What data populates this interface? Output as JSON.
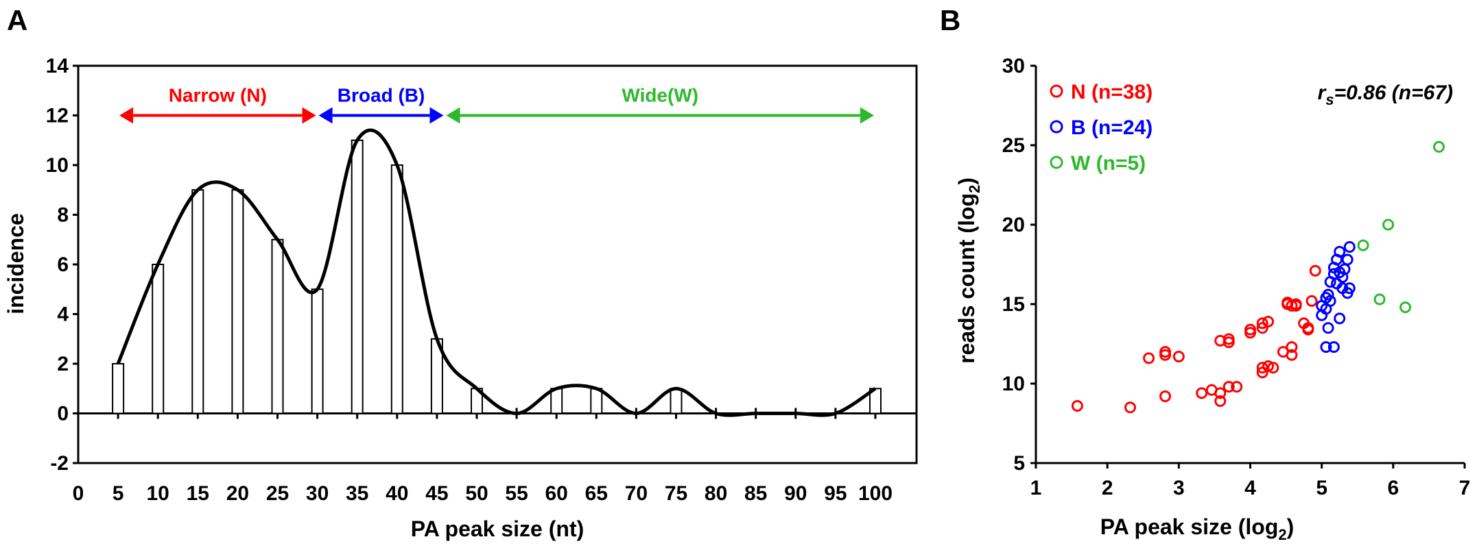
{
  "chart_data": [
    {
      "panel": "A",
      "type": "bar",
      "title": "",
      "xlabel": "PA peak size (nt)",
      "ylabel": "incidence",
      "ylim": [
        -2,
        14
      ],
      "xlim": [
        0,
        100
      ],
      "x_ticks": [
        "0",
        "5",
        "10",
        "15",
        "20",
        "25",
        "30",
        "35",
        "40",
        "45",
        "50",
        "55",
        "60",
        "65",
        "70",
        "75",
        "80",
        "85",
        "90",
        "95",
        "100"
      ],
      "y_ticks": [
        "-2",
        "0",
        "2",
        "4",
        "6",
        "8",
        "10",
        "12",
        "14"
      ],
      "categories": [
        5,
        10,
        15,
        20,
        25,
        30,
        35,
        40,
        45,
        50,
        55,
        60,
        65,
        70,
        75,
        80,
        85,
        90,
        95,
        100
      ],
      "values": [
        2,
        6,
        9,
        9,
        7,
        5,
        11,
        10,
        3,
        1,
        0,
        1,
        1,
        0,
        1,
        0,
        0,
        0,
        0,
        1
      ],
      "smooth_curve": true,
      "ranges": [
        {
          "label": "Narrow (N)",
          "from": 5,
          "to": 30,
          "color": "#ff0000"
        },
        {
          "label": "Broad (B)",
          "from": 30,
          "to": 46,
          "color": "#0000ff"
        },
        {
          "label": "Wide(W)",
          "from": 46,
          "to": 100,
          "color": "#2db92d"
        }
      ]
    },
    {
      "panel": "B",
      "type": "scatter",
      "title": "",
      "xlabel": "PA peak size (log",
      "xlabel_sub": "2",
      "xlabel_end": ")",
      "ylabel": "reads count (log",
      "ylabel_sub": "2",
      "ylabel_end": ")",
      "xlim": [
        1,
        7
      ],
      "ylim": [
        5,
        30
      ],
      "x_ticks": [
        "1",
        "2",
        "3",
        "4",
        "5",
        "6",
        "7"
      ],
      "y_ticks": [
        "5",
        "10",
        "15",
        "20",
        "25",
        "30"
      ],
      "legend_position": "top-left",
      "annotation": {
        "r": "r",
        "sub": "s",
        "text": "=0.86 (n=67)"
      },
      "series": [
        {
          "name": "N (n=38)",
          "color": "#ff0000",
          "points": [
            [
              1.58,
              8.6
            ],
            [
              2.32,
              8.5
            ],
            [
              2.58,
              11.6
            ],
            [
              2.81,
              11.8
            ],
            [
              2.81,
              12.0
            ],
            [
              2.81,
              9.2
            ],
            [
              3.0,
              11.7
            ],
            [
              3.32,
              9.4
            ],
            [
              3.46,
              9.6
            ],
            [
              3.58,
              9.4
            ],
            [
              3.58,
              8.9
            ],
            [
              3.58,
              12.7
            ],
            [
              3.7,
              12.6
            ],
            [
              3.7,
              12.8
            ],
            [
              3.7,
              9.8
            ],
            [
              3.81,
              9.8
            ],
            [
              4.0,
              13.4
            ],
            [
              4.0,
              13.2
            ],
            [
              4.17,
              13.5
            ],
            [
              4.17,
              13.8
            ],
            [
              4.25,
              13.9
            ],
            [
              4.17,
              10.7
            ],
            [
              4.17,
              11.0
            ],
            [
              4.25,
              11.1
            ],
            [
              4.32,
              11.0
            ],
            [
              4.46,
              12.0
            ],
            [
              4.58,
              12.3
            ],
            [
              4.58,
              11.8
            ],
            [
              4.52,
              15.1
            ],
            [
              4.58,
              14.9
            ],
            [
              4.64,
              15.0
            ],
            [
              4.75,
              13.8
            ],
            [
              4.81,
              13.5
            ],
            [
              4.81,
              13.4
            ],
            [
              4.86,
              15.2
            ],
            [
              4.91,
              17.1
            ],
            [
              4.52,
              15.0
            ],
            [
              4.64,
              14.9
            ]
          ]
        },
        {
          "name": "B (n=24)",
          "color": "#0000ff",
          "points": [
            [
              5.0,
              14.3
            ],
            [
              5.06,
              14.7
            ],
            [
              5.06,
              15.4
            ],
            [
              5.09,
              15.6
            ],
            [
              5.09,
              13.5
            ],
            [
              5.12,
              15.2
            ],
            [
              5.12,
              16.4
            ],
            [
              5.17,
              16.9
            ],
            [
              5.17,
              17.3
            ],
            [
              5.21,
              16.3
            ],
            [
              5.21,
              17.8
            ],
            [
              5.25,
              18.3
            ],
            [
              5.25,
              17.0
            ],
            [
              5.29,
              16.7
            ],
            [
              5.29,
              16.0
            ],
            [
              5.32,
              17.2
            ],
            [
              5.36,
              15.7
            ],
            [
              5.36,
              17.8
            ],
            [
              5.39,
              16.0
            ],
            [
              5.39,
              18.6
            ],
            [
              5.25,
              14.1
            ],
            [
              5.06,
              12.3
            ],
            [
              5.17,
              12.3
            ],
            [
              5.0,
              14.9
            ]
          ]
        },
        {
          "name": "W (n=5)",
          "color": "#2db92d",
          "points": [
            [
              5.58,
              18.7
            ],
            [
              5.81,
              15.3
            ],
            [
              5.93,
              20.0
            ],
            [
              6.17,
              14.8
            ],
            [
              6.64,
              24.9
            ]
          ]
        }
      ]
    }
  ]
}
